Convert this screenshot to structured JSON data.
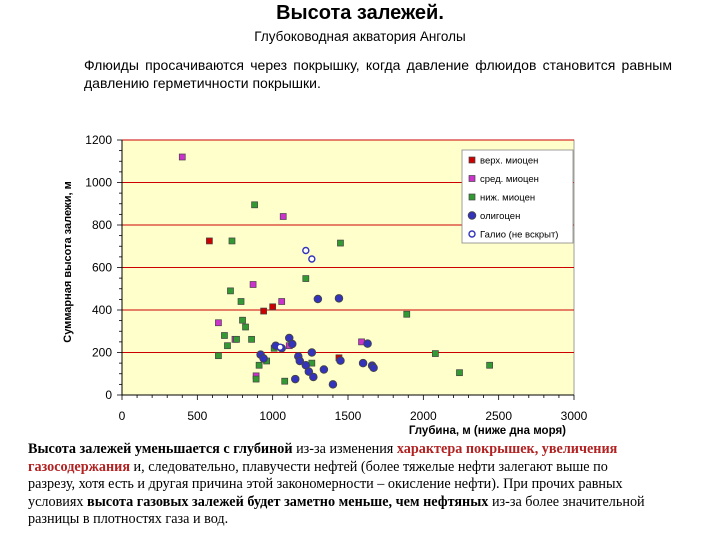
{
  "header": {
    "title": "Высота залежей.",
    "subtitle": "Глубоководная акватория Анголы",
    "intro": "Флюиды просачиваются через покрышку, когда давление флюидов становится равным давлению герметичности покрышки."
  },
  "chart_data": {
    "type": "scatter",
    "title": "",
    "xlabel": "Глубина, м (ниже дна моря)",
    "ylabel": "Суммарная высота залежи, м",
    "xlim": [
      0,
      3000
    ],
    "ylim": [
      0,
      1200
    ],
    "xticks": [
      0,
      500,
      1000,
      1500,
      2000,
      2500,
      3000
    ],
    "yticks": [
      0,
      200,
      400,
      600,
      800,
      1000,
      1200
    ],
    "grid": "horizontal",
    "legend_position": "top-right",
    "colors": {
      "plot_background": "#ffffcc",
      "gridline": "#cc0000",
      "dark_gray_marker_outline": "#444444"
    },
    "series": [
      {
        "name": "верх. миоцен",
        "marker": "square",
        "color": "#cc0000",
        "points": [
          [
            580,
            725
          ],
          [
            940,
            395
          ],
          [
            1000,
            415
          ],
          [
            1440,
            175
          ]
        ]
      },
      {
        "name": "сред. миоцен",
        "marker": "square",
        "color": "#cc33cc",
        "points": [
          [
            400,
            1120
          ],
          [
            640,
            340
          ],
          [
            750,
            262
          ],
          [
            870,
            520
          ],
          [
            890,
            90
          ],
          [
            1060,
            440
          ],
          [
            1070,
            840
          ],
          [
            1110,
            232
          ],
          [
            1590,
            250
          ]
        ]
      },
      {
        "name": "ниж. миоцен",
        "marker": "square",
        "color": "#339933",
        "points": [
          [
            640,
            185
          ],
          [
            680,
            280
          ],
          [
            700,
            232
          ],
          [
            720,
            490
          ],
          [
            730,
            725
          ],
          [
            760,
            262
          ],
          [
            790,
            440
          ],
          [
            800,
            352
          ],
          [
            820,
            320
          ],
          [
            860,
            262
          ],
          [
            880,
            895
          ],
          [
            890,
            75
          ],
          [
            910,
            140
          ],
          [
            960,
            160
          ],
          [
            1010,
            220
          ],
          [
            1080,
            65
          ],
          [
            1220,
            548
          ],
          [
            1260,
            150
          ],
          [
            1450,
            715
          ],
          [
            1890,
            380
          ],
          [
            2080,
            195
          ],
          [
            2240,
            105
          ],
          [
            2440,
            140
          ]
        ]
      },
      {
        "name": "олигоцен",
        "marker": "circle",
        "color": "#3333bb",
        "points": [
          [
            920,
            190
          ],
          [
            940,
            172
          ],
          [
            1020,
            232
          ],
          [
            1060,
            220
          ],
          [
            1110,
            268
          ],
          [
            1130,
            240
          ],
          [
            1150,
            75
          ],
          [
            1170,
            182
          ],
          [
            1180,
            160
          ],
          [
            1220,
            140
          ],
          [
            1240,
            110
          ],
          [
            1260,
            200
          ],
          [
            1270,
            85
          ],
          [
            1300,
            452
          ],
          [
            1340,
            120
          ],
          [
            1400,
            50
          ],
          [
            1440,
            455
          ],
          [
            1450,
            162
          ],
          [
            1600,
            150
          ],
          [
            1630,
            242
          ],
          [
            1660,
            138
          ],
          [
            1670,
            128
          ]
        ]
      },
      {
        "name": "Галио (не вскрыт)",
        "marker": "open-circle",
        "color": "#3333bb",
        "points": [
          [
            1220,
            680
          ],
          [
            1260,
            640
          ],
          [
            1050,
            225
          ]
        ]
      }
    ]
  },
  "caption": {
    "p1": "Высота залежей уменьшается с глубиной",
    "p2": " из-за изменения ",
    "p3": "характера покрышек, увеличения газосодержания",
    "p4": " и, следовательно, плавучести нефтей (более тяжелые нефти залегают выше по разрезу, хотя есть и другая причина этой закономерности – окисление нефти). При прочих равных условиях ",
    "p5": "высота газовых залежей будет заметно меньше, чем нефтяных",
    "p6": " из-за более значительной разницы в плотностях газа и вод."
  }
}
